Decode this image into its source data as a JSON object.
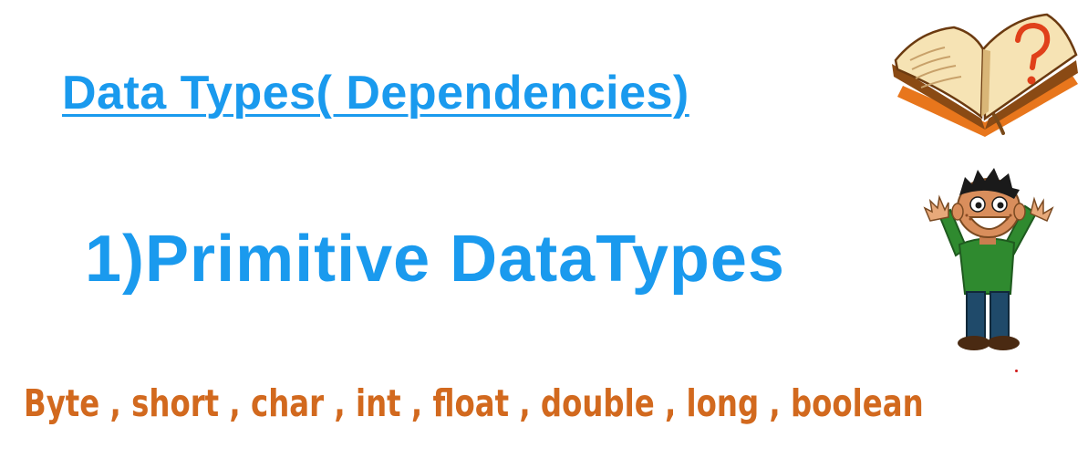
{
  "slide": {
    "title": "Data Types( Dependencies)",
    "subtitle": "1)Primitive DataTypes",
    "types_line": "Byte , short , char , int , float , double , long , boolean"
  },
  "colors": {
    "title": "#1a9aee",
    "subtitle": "#1a9aee",
    "types": "#d2691e"
  },
  "illustrations": {
    "book": "open-book-question-mark-icon",
    "boy": "cheering-boy-icon"
  }
}
